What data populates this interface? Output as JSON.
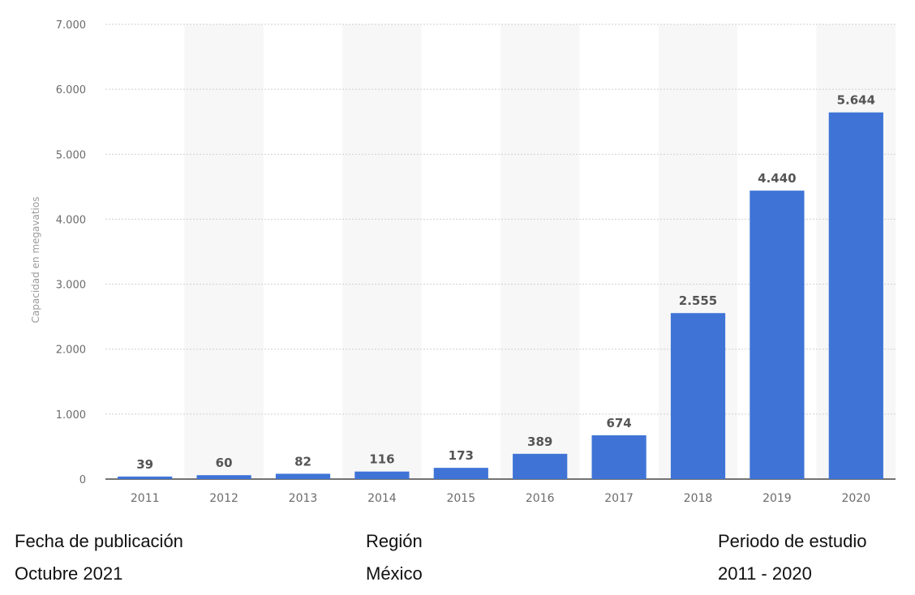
{
  "chart_data": {
    "type": "bar",
    "categories": [
      "2011",
      "2012",
      "2013",
      "2014",
      "2015",
      "2016",
      "2017",
      "2018",
      "2019",
      "2020"
    ],
    "values": [
      39,
      60,
      82,
      116,
      173,
      389,
      674,
      2555,
      4440,
      5644
    ],
    "value_labels": [
      "39",
      "60",
      "82",
      "116",
      "173",
      "389",
      "674",
      "2.555",
      "4.440",
      "5.644"
    ],
    "ylabel": "Capacidad en megavatios",
    "xlabel": "",
    "ylim": [
      0,
      7000
    ],
    "yticks": [
      0,
      1000,
      2000,
      3000,
      4000,
      5000,
      6000,
      7000
    ],
    "ytick_labels": [
      "0",
      "1.000",
      "2.000",
      "3.000",
      "4.000",
      "5.000",
      "6.000",
      "7.000"
    ],
    "grid": true,
    "bar_color": "#3f74d6",
    "band_color": "#f7f7f7"
  },
  "meta": {
    "publication": {
      "label": "Fecha de publicación",
      "value": "Octubre 2021"
    },
    "region": {
      "label": "Región",
      "value": "México"
    },
    "period": {
      "label": "Periodo de estudio",
      "value": "2011 - 2020"
    }
  }
}
